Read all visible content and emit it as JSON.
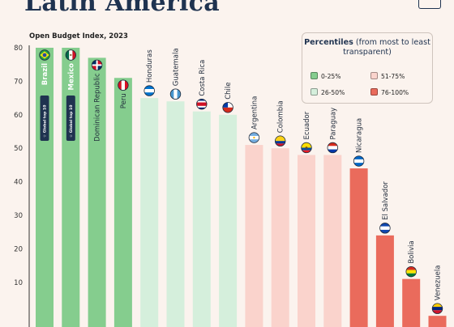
{
  "title": "Latin America",
  "subtitle": "Open Budget Index, 2023",
  "legend": {
    "title_bold": "Percentiles",
    "title_rest": "(from most to least transparent)",
    "items": [
      {
        "label": "0-25%",
        "color": "#85cd8e"
      },
      {
        "label": "51-75%",
        "color": "#fad3cc"
      },
      {
        "label": "26-50%",
        "color": "#d5efdc"
      },
      {
        "label": "76-100%",
        "color": "#ea6b5c"
      }
    ]
  },
  "badge_text": "Global top 10",
  "chart_data": {
    "type": "bar",
    "title": "Latin America",
    "subtitle": "Open Budget Index, 2023",
    "ylim": [
      0,
      80
    ],
    "yticks": [
      10,
      20,
      30,
      40,
      50,
      60,
      70,
      80
    ],
    "grid": false,
    "legend_position": "top-right",
    "categories": [
      "Brazil",
      "Mexico",
      "Dominican Republic",
      "Peru",
      "Honduras",
      "Guatemala",
      "Costa Rica",
      "Chile",
      "Argentina",
      "Colombia",
      "Ecuador",
      "Paraguay",
      "Nicaragua",
      "El Salvador",
      "Bolivia",
      "Venezuela"
    ],
    "values": [
      80,
      80,
      77,
      71,
      65,
      64,
      61,
      60,
      51,
      50,
      48,
      48,
      44,
      24,
      11,
      0
    ],
    "percentile_group": [
      "0-25%",
      "0-25%",
      "0-25%",
      "0-25%",
      "26-50%",
      "26-50%",
      "26-50%",
      "26-50%",
      "51-75%",
      "51-75%",
      "51-75%",
      "51-75%",
      "76-100%",
      "76-100%",
      "76-100%",
      "76-100%"
    ],
    "global_top_10": [
      "Brazil",
      "Mexico"
    ],
    "colors": {
      "0-25%": "#85cd8e",
      "26-50%": "#d5efdc",
      "51-75%": "#fad3cc",
      "76-100%": "#ea6b5c"
    },
    "flag_icons": [
      "brazil-flag-icon",
      "mexico-flag-icon",
      "dominican-republic-flag-icon",
      "peru-flag-icon",
      "honduras-flag-icon",
      "guatemala-flag-icon",
      "costa-rica-flag-icon",
      "chile-flag-icon",
      "argentina-flag-icon",
      "colombia-flag-icon",
      "ecuador-flag-icon",
      "paraguay-flag-icon",
      "nicaragua-flag-icon",
      "el-salvador-flag-icon",
      "bolivia-flag-icon",
      "venezuela-flag-icon"
    ]
  }
}
